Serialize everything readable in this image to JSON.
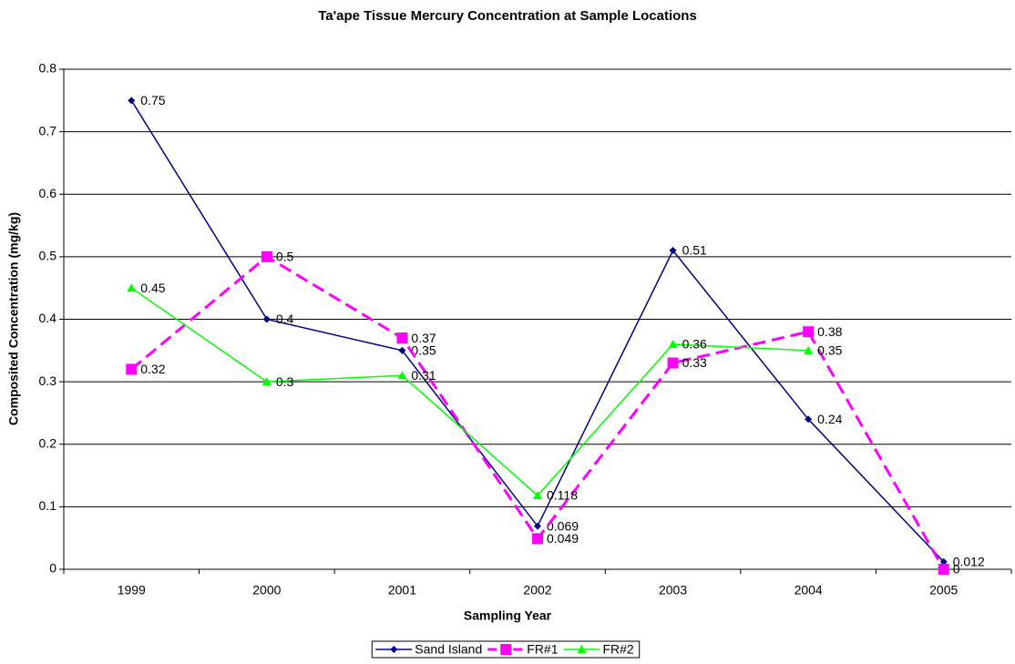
{
  "chart_data": {
    "type": "line",
    "title": "Ta'ape Tissue Mercury Concentration at Sample Locations",
    "x_label": "Sampling Year",
    "y_label": "Composited Concentration (mg/kg)",
    "categories": [
      "1999",
      "2000",
      "2001",
      "2002",
      "2003",
      "2004",
      "2005"
    ],
    "series": [
      {
        "name": "Sand Island",
        "color": "#000080",
        "marker": "diamond",
        "dash": false,
        "values": [
          0.75,
          0.4,
          0.35,
          0.069,
          0.51,
          0.24,
          0.012
        ]
      },
      {
        "name": "FR#1",
        "color": "#ff00ff",
        "marker": "square",
        "dash": true,
        "values": [
          0.32,
          0.5,
          0.37,
          0.049,
          0.33,
          0.38,
          0
        ]
      },
      {
        "name": "FR#2",
        "color": "#00ff00",
        "marker": "triangle",
        "dash": false,
        "values": [
          0.45,
          0.3,
          0.31,
          0.118,
          0.36,
          0.35,
          null
        ]
      }
    ],
    "ylim": [
      0,
      0.8
    ],
    "yticks": [
      0,
      0.1,
      0.2,
      0.3,
      0.4,
      0.5,
      0.6,
      0.7,
      0.8
    ],
    "grid": true,
    "legend": "bottom"
  }
}
